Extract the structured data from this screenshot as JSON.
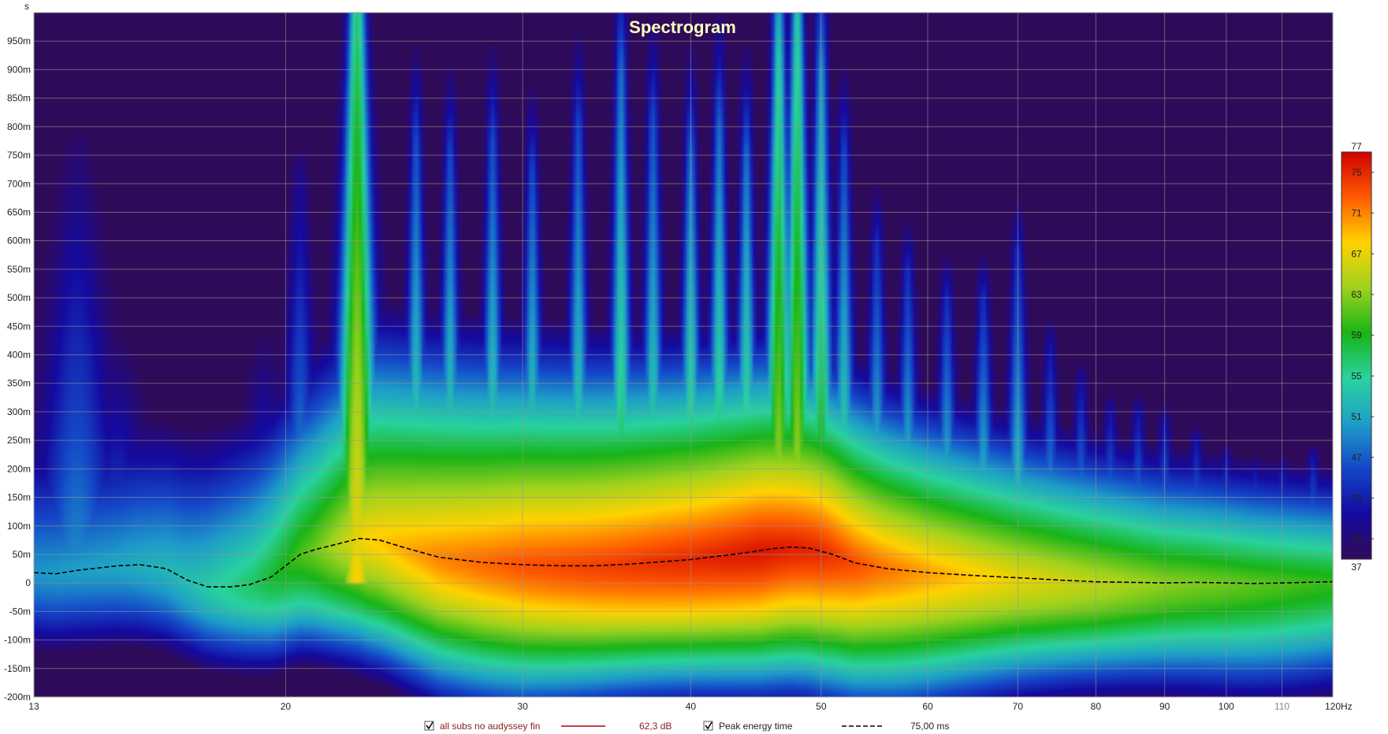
{
  "chart_data": {
    "type": "heatmap",
    "title": "Spectrogram",
    "y_unit": "s",
    "x_unit": "Hz",
    "x_scale": "log",
    "xlim": [
      13,
      120
    ],
    "ylim": [
      -0.2,
      1.0
    ],
    "x_ticks": [
      {
        "value": 13,
        "label": "13"
      },
      {
        "value": 20,
        "label": "20"
      },
      {
        "value": 30,
        "label": "30"
      },
      {
        "value": 40,
        "label": "40"
      },
      {
        "value": 50,
        "label": "50"
      },
      {
        "value": 60,
        "label": "60"
      },
      {
        "value": 70,
        "label": "70"
      },
      {
        "value": 80,
        "label": "80"
      },
      {
        "value": 90,
        "label": "90"
      },
      {
        "value": 100,
        "label": "100"
      },
      {
        "value": 110,
        "label": "110"
      },
      {
        "value": 120,
        "label": "120Hz"
      }
    ],
    "y_ticks": [
      {
        "value": 0.95,
        "label": "950m"
      },
      {
        "value": 0.9,
        "label": "900m"
      },
      {
        "value": 0.85,
        "label": "850m"
      },
      {
        "value": 0.8,
        "label": "800m"
      },
      {
        "value": 0.75,
        "label": "750m"
      },
      {
        "value": 0.7,
        "label": "700m"
      },
      {
        "value": 0.65,
        "label": "650m"
      },
      {
        "value": 0.6,
        "label": "600m"
      },
      {
        "value": 0.55,
        "label": "550m"
      },
      {
        "value": 0.5,
        "label": "500m"
      },
      {
        "value": 0.45,
        "label": "450m"
      },
      {
        "value": 0.4,
        "label": "400m"
      },
      {
        "value": 0.35,
        "label": "350m"
      },
      {
        "value": 0.3,
        "label": "300m"
      },
      {
        "value": 0.25,
        "label": "250m"
      },
      {
        "value": 0.2,
        "label": "200m"
      },
      {
        "value": 0.15,
        "label": "150m"
      },
      {
        "value": 0.1,
        "label": "100m"
      },
      {
        "value": 0.05,
        "label": "50m"
      },
      {
        "value": 0,
        "label": "0"
      },
      {
        "value": -0.05,
        "label": "-50m"
      },
      {
        "value": -0.1,
        "label": "-100m"
      },
      {
        "value": -0.15,
        "label": "-150m"
      },
      {
        "value": -0.2,
        "label": "-200m"
      }
    ],
    "grid": true,
    "colorbar": {
      "range": [
        37,
        77
      ],
      "labels": [
        "77",
        "75",
        "71",
        "67",
        "63",
        "59",
        "55",
        "51",
        "47",
        "43",
        "39",
        "37"
      ],
      "values": [
        77,
        75,
        71,
        67,
        63,
        59,
        55,
        51,
        47,
        43,
        39,
        37
      ],
      "stops": [
        "#d00000",
        "#ff5a00",
        "#ffd200",
        "#9ed21e",
        "#18b418",
        "#2ad29e",
        "#1e9ec8",
        "#1446c8",
        "#140aa0",
        "#320a5a"
      ]
    },
    "background_color": "#2e0b58",
    "peaks": [
      {
        "f": 14,
        "decay": 0.78,
        "level": 50,
        "width": 0.05
      },
      {
        "f": 15,
        "decay": 0.5,
        "level": 48,
        "width": 0.04
      },
      {
        "f": 19.3,
        "decay": 0.5,
        "level": 48,
        "width": 0.03
      },
      {
        "f": 20.5,
        "decay": 0.72,
        "level": 52,
        "width": 0.02
      },
      {
        "f": 22.6,
        "decay": 1.02,
        "level": 68,
        "width": 0.025
      },
      {
        "f": 25,
        "decay": 0.78,
        "level": 58,
        "width": 0.012
      },
      {
        "f": 26.5,
        "decay": 0.75,
        "level": 58,
        "width": 0.012
      },
      {
        "f": 28.5,
        "decay": 0.78,
        "level": 58,
        "width": 0.012
      },
      {
        "f": 30.5,
        "decay": 0.72,
        "level": 58,
        "width": 0.012
      },
      {
        "f": 33,
        "decay": 0.8,
        "level": 58,
        "width": 0.012
      },
      {
        "f": 35.5,
        "decay": 0.9,
        "level": 60,
        "width": 0.012
      },
      {
        "f": 37.5,
        "decay": 0.82,
        "level": 58,
        "width": 0.012
      },
      {
        "f": 40,
        "decay": 0.75,
        "level": 60,
        "width": 0.012
      },
      {
        "f": 42,
        "decay": 0.8,
        "level": 60,
        "width": 0.012
      },
      {
        "f": 44,
        "decay": 0.75,
        "level": 60,
        "width": 0.012
      },
      {
        "f": 46.5,
        "decay": 0.93,
        "level": 66,
        "width": 0.016
      },
      {
        "f": 48,
        "decay": 0.99,
        "level": 66,
        "width": 0.016
      },
      {
        "f": 50,
        "decay": 0.9,
        "level": 62,
        "width": 0.014
      },
      {
        "f": 52,
        "decay": 0.75,
        "level": 58,
        "width": 0.012
      },
      {
        "f": 55,
        "decay": 0.6,
        "level": 56,
        "width": 0.012
      },
      {
        "f": 58,
        "decay": 0.55,
        "level": 56,
        "width": 0.012
      },
      {
        "f": 62,
        "decay": 0.5,
        "level": 56,
        "width": 0.012
      },
      {
        "f": 66,
        "decay": 0.5,
        "level": 56,
        "width": 0.012
      },
      {
        "f": 70,
        "decay": 0.58,
        "level": 56,
        "width": 0.012
      },
      {
        "f": 74,
        "decay": 0.42,
        "level": 54,
        "width": 0.01
      },
      {
        "f": 78,
        "decay": 0.35,
        "level": 54,
        "width": 0.01
      },
      {
        "f": 82,
        "decay": 0.3,
        "level": 54,
        "width": 0.01
      },
      {
        "f": 86,
        "decay": 0.3,
        "level": 54,
        "width": 0.01
      },
      {
        "f": 90,
        "decay": 0.28,
        "level": 54,
        "width": 0.01
      },
      {
        "f": 95,
        "decay": 0.25,
        "level": 54,
        "width": 0.01
      },
      {
        "f": 100,
        "decay": 0.22,
        "level": 54,
        "width": 0.01
      },
      {
        "f": 105,
        "decay": 0.2,
        "level": 54,
        "width": 0.01
      },
      {
        "f": 110,
        "decay": 0.2,
        "level": 54,
        "width": 0.01
      },
      {
        "f": 116,
        "decay": 0.22,
        "level": 54,
        "width": 0.01
      }
    ],
    "ridge": [
      {
        "f": 13,
        "level": 50
      },
      {
        "f": 15,
        "level": 51
      },
      {
        "f": 17,
        "level": 53
      },
      {
        "f": 19,
        "level": 57
      },
      {
        "f": 21,
        "level": 62
      },
      {
        "f": 23,
        "level": 68
      },
      {
        "f": 26,
        "level": 71
      },
      {
        "f": 30,
        "level": 73
      },
      {
        "f": 35,
        "level": 74
      },
      {
        "f": 40,
        "level": 75
      },
      {
        "f": 45,
        "level": 76
      },
      {
        "f": 50,
        "level": 75
      },
      {
        "f": 55,
        "level": 72
      },
      {
        "f": 60,
        "level": 70
      },
      {
        "f": 70,
        "level": 67
      },
      {
        "f": 80,
        "level": 65
      },
      {
        "f": 90,
        "level": 63
      },
      {
        "f": 100,
        "level": 62
      },
      {
        "f": 110,
        "level": 61
      },
      {
        "f": 120,
        "level": 60
      }
    ],
    "series": [
      {
        "name": "Peak energy time",
        "color": "#000000",
        "dash": true,
        "x": [
          13,
          13.5,
          14,
          14.5,
          15,
          15.6,
          16.3,
          16.9,
          17.5,
          18.2,
          18.8,
          19.5,
          20,
          20.5,
          21,
          22,
          22.7,
          23.5,
          24.5,
          26,
          28,
          30,
          32,
          34,
          36,
          38,
          40,
          42,
          44,
          46,
          47.5,
          49,
          51,
          53,
          56,
          60,
          65,
          70,
          75,
          80,
          85,
          90,
          95,
          100,
          105,
          110,
          115,
          120
        ],
        "y": [
          0.018,
          0.016,
          0.022,
          0.026,
          0.03,
          0.032,
          0.025,
          0.005,
          -0.007,
          -0.007,
          -0.003,
          0.01,
          0.03,
          0.05,
          0.058,
          0.07,
          0.078,
          0.075,
          0.062,
          0.045,
          0.036,
          0.032,
          0.03,
          0.03,
          0.033,
          0.037,
          0.041,
          0.047,
          0.053,
          0.06,
          0.063,
          0.061,
          0.05,
          0.035,
          0.025,
          0.018,
          0.013,
          0.009,
          0.005,
          0.002,
          0.001,
          0.0,
          0.001,
          0.0,
          -0.001,
          0.0,
          0.001,
          0.002
        ]
      }
    ]
  },
  "legend": {
    "items": [
      {
        "label": "all subs no audyssey fin",
        "color": "#8b1a1a",
        "checked": true,
        "value": "62,3 dB",
        "line_color": "#b00000",
        "dash": false
      },
      {
        "label": "Peak energy time",
        "color": "#222222",
        "checked": true,
        "value": "75,00 ms",
        "line_color": "#000000",
        "dash": true
      }
    ]
  }
}
